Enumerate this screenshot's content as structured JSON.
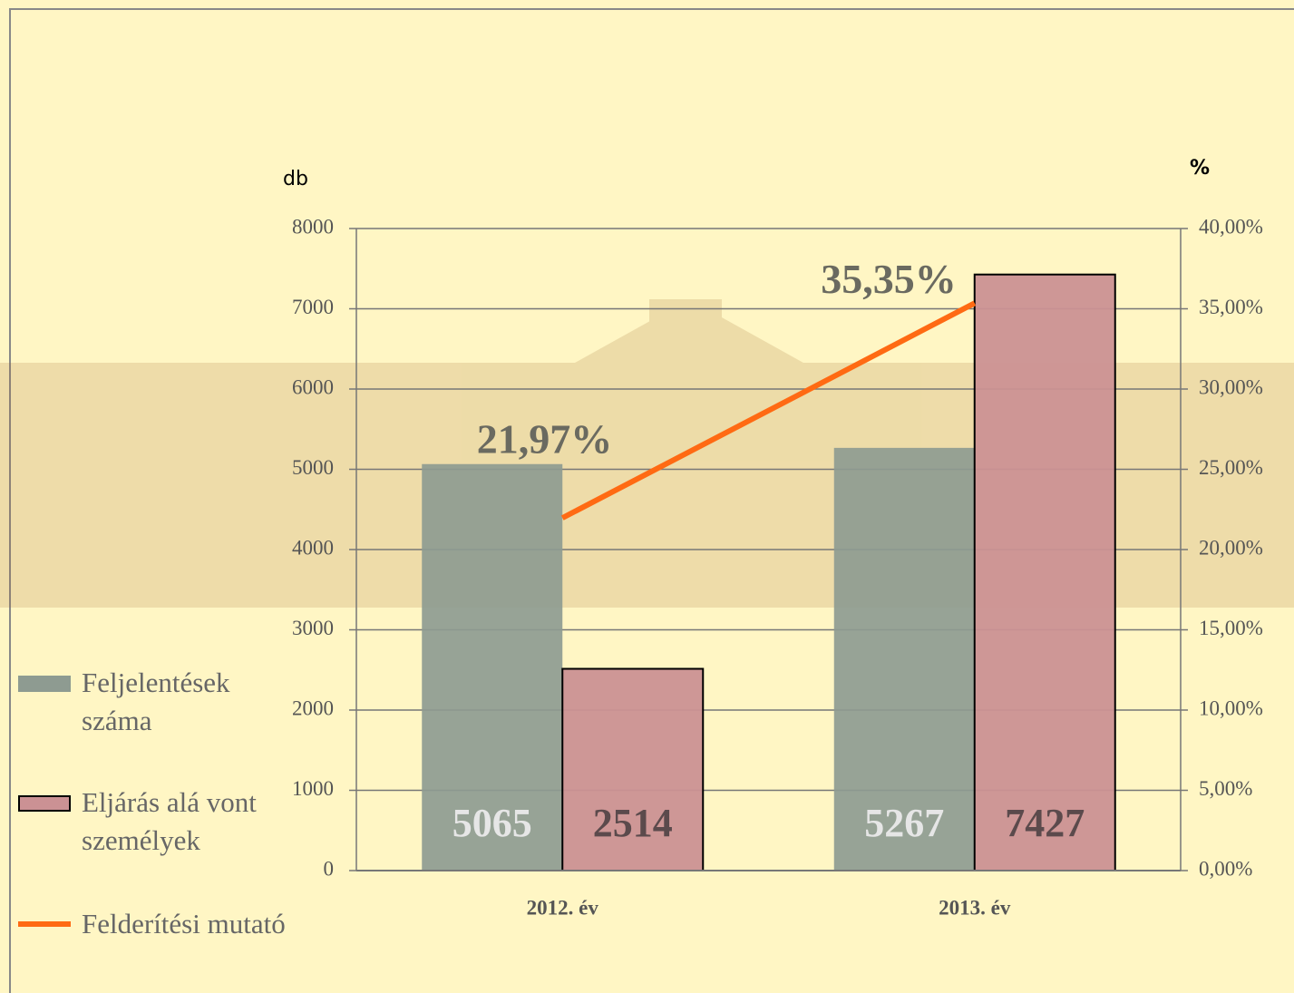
{
  "chart_data": {
    "type": "bar",
    "y_label": "db",
    "y2_label": "%",
    "categories": [
      "2012. év",
      "2013. év"
    ],
    "series": [
      {
        "name": "Feljelentések száma",
        "color": "#8e9b91",
        "values": [
          5065,
          5267
        ],
        "label_color": "#e6e6e6"
      },
      {
        "name": "Eljárás alá vont személyek",
        "color": "#cb9194",
        "values": [
          2514,
          7427
        ],
        "label_color": "#5b4a4c"
      },
      {
        "name": "Felderítési mutató",
        "type": "line",
        "axis": "y2",
        "color": "#ff6a13",
        "values": [
          21.97,
          35.35
        ],
        "value_labels": [
          "21,97%",
          "35,35%"
        ]
      }
    ],
    "ylim": [
      0,
      8000
    ],
    "yticks": [
      0,
      1000,
      2000,
      3000,
      4000,
      5000,
      6000,
      7000,
      8000
    ],
    "y2lim": [
      0,
      40
    ],
    "y2ticks": [
      {
        "value": 0,
        "label": "0,00%"
      },
      {
        "value": 5,
        "label": "5,00%"
      },
      {
        "value": 10,
        "label": "10,00%"
      },
      {
        "value": 15,
        "label": "15,00%"
      },
      {
        "value": 20,
        "label": "20,00%"
      },
      {
        "value": 25,
        "label": "25,00%"
      },
      {
        "value": 30,
        "label": "30,00%"
      },
      {
        "value": 35,
        "label": "35,00%"
      },
      {
        "value": 40,
        "label": "40,00%"
      }
    ],
    "grid": true
  }
}
